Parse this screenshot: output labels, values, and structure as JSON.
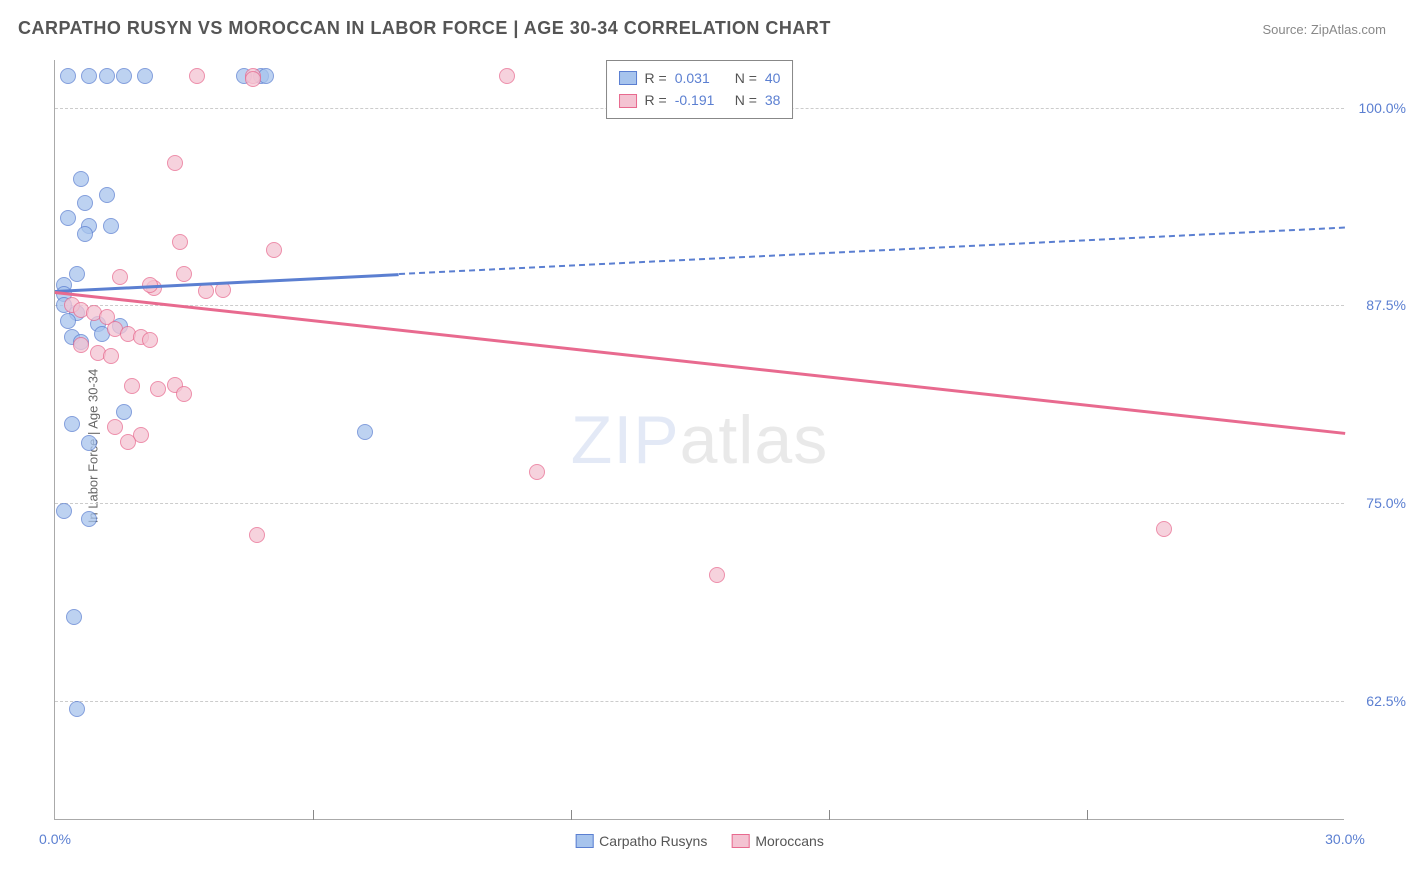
{
  "title": "CARPATHO RUSYN VS MOROCCAN IN LABOR FORCE | AGE 30-34 CORRELATION CHART",
  "source_label": "Source: ",
  "source_name": "ZipAtlas.com",
  "y_axis_title": "In Labor Force | Age 30-34",
  "watermark_zip": "ZIP",
  "watermark_rest": "atlas",
  "chart": {
    "type": "scatter",
    "xlim": [
      0,
      30
    ],
    "x_ticks": [
      0,
      30
    ],
    "x_tick_labels": [
      "0.0%",
      "30.0%"
    ],
    "x_inner_ticks_count": 4,
    "ylim": [
      55,
      103
    ],
    "y_ticks": [
      62.5,
      75.0,
      87.5,
      100.0
    ],
    "y_tick_labels": [
      "62.5%",
      "75.0%",
      "87.5%",
      "100.0%"
    ],
    "background_color": "#ffffff",
    "grid_color": "#cccccc",
    "series": [
      {
        "name": "Carpatho Rusyns",
        "label": "Carpatho Rusyns",
        "fill_color": "#a7c4ed",
        "stroke_color": "#5b7fd1",
        "r_value": "0.031",
        "n_value": "40",
        "trend": {
          "y_at_x0": 88.5,
          "y_at_xmax": 92.5,
          "solid_until_x": 8
        },
        "points": [
          [
            0.3,
            102
          ],
          [
            0.8,
            102
          ],
          [
            1.2,
            102
          ],
          [
            1.6,
            102
          ],
          [
            2.1,
            102
          ],
          [
            4.4,
            102
          ],
          [
            4.8,
            102
          ],
          [
            0.6,
            95.5
          ],
          [
            0.7,
            94
          ],
          [
            1.2,
            94.5
          ],
          [
            0.3,
            93
          ],
          [
            0.8,
            92.5
          ],
          [
            0.7,
            92
          ],
          [
            1.3,
            92.5
          ],
          [
            0.5,
            89.5
          ],
          [
            0.2,
            88.8
          ],
          [
            0.2,
            88.2
          ],
          [
            0.2,
            87.5
          ],
          [
            0.5,
            87
          ],
          [
            0.3,
            86.5
          ],
          [
            1.0,
            86.3
          ],
          [
            1.5,
            86.2
          ],
          [
            0.4,
            85.5
          ],
          [
            0.6,
            85.2
          ],
          [
            1.1,
            85.7
          ],
          [
            1.6,
            80.8
          ],
          [
            0.4,
            80
          ],
          [
            0.8,
            78.8
          ],
          [
            0.2,
            74.5
          ],
          [
            0.8,
            74.0
          ],
          [
            0.45,
            67.8
          ],
          [
            0.5,
            62.0
          ],
          [
            7.2,
            79.5
          ],
          [
            4.9,
            102
          ]
        ]
      },
      {
        "name": "Moroccans",
        "label": "Moroccans",
        "fill_color": "#f4c3d2",
        "stroke_color": "#e86a8f",
        "r_value": "-0.191",
        "n_value": "38",
        "trend": {
          "y_at_x0": 88.4,
          "y_at_xmax": 79.5,
          "solid_until_x": 30
        },
        "points": [
          [
            3.3,
            102
          ],
          [
            4.6,
            102
          ],
          [
            4.6,
            101.8
          ],
          [
            2.8,
            96.5
          ],
          [
            2.9,
            91.5
          ],
          [
            5.1,
            91
          ],
          [
            3.0,
            89.5
          ],
          [
            1.5,
            89.3
          ],
          [
            2.3,
            88.6
          ],
          [
            2.2,
            88.8
          ],
          [
            3.5,
            88.4
          ],
          [
            3.9,
            88.5
          ],
          [
            0.4,
            87.5
          ],
          [
            0.6,
            87.2
          ],
          [
            0.9,
            87.0
          ],
          [
            1.2,
            86.8
          ],
          [
            1.4,
            86
          ],
          [
            1.7,
            85.7
          ],
          [
            2.0,
            85.5
          ],
          [
            2.2,
            85.3
          ],
          [
            0.6,
            85.0
          ],
          [
            1.0,
            84.5
          ],
          [
            1.3,
            84.3
          ],
          [
            2.4,
            82.2
          ],
          [
            2.8,
            82.5
          ],
          [
            3.0,
            81.9
          ],
          [
            1.4,
            79.8
          ],
          [
            2.0,
            79.3
          ],
          [
            1.7,
            78.9
          ],
          [
            1.8,
            82.4
          ],
          [
            4.7,
            73.0
          ],
          [
            10.5,
            102
          ],
          [
            11.2,
            77.0
          ],
          [
            15.4,
            70.5
          ],
          [
            25.8,
            73.4
          ]
        ]
      }
    ]
  },
  "legend_top": {
    "r_label": "R  =",
    "n_label": "N  ="
  }
}
